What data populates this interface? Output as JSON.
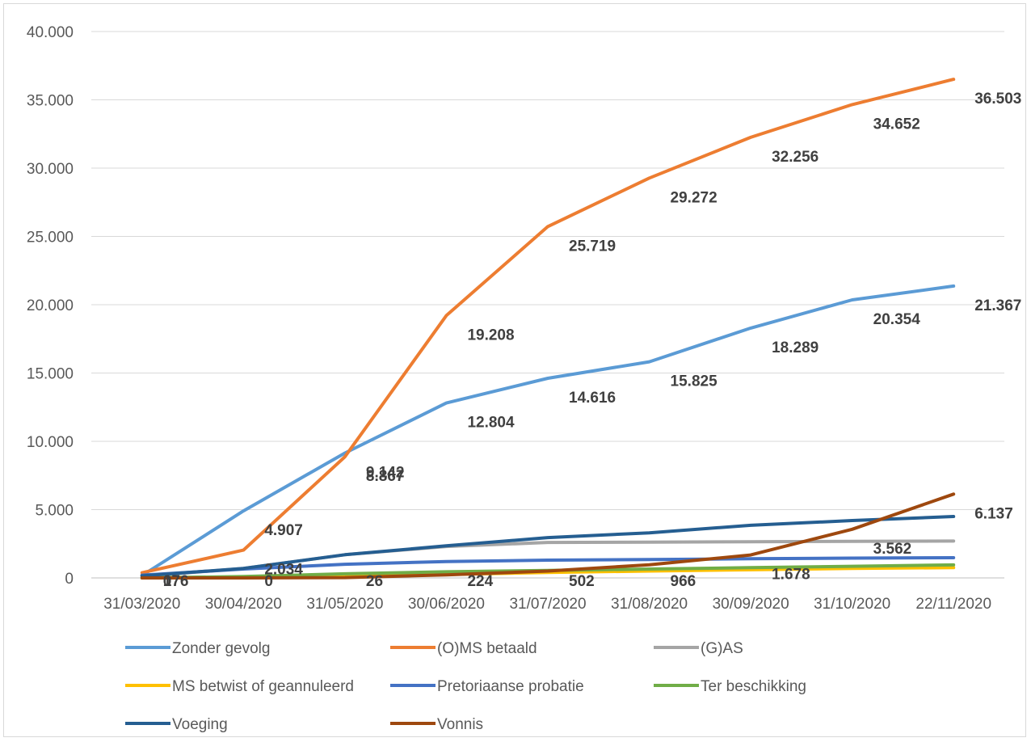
{
  "chart_data": {
    "type": "line",
    "x": [
      "31/03/2020",
      "30/04/2020",
      "31/05/2020",
      "30/06/2020",
      "31/07/2020",
      "31/08/2020",
      "30/09/2020",
      "31/10/2020",
      "22/11/2020"
    ],
    "ylim": [
      0,
      40000
    ],
    "yticks": [
      0,
      5000,
      10000,
      15000,
      20000,
      25000,
      30000,
      35000,
      40000
    ],
    "ytick_labels": [
      "0",
      "5.000",
      "10.000",
      "15.000",
      "20.000",
      "25.000",
      "30.000",
      "35.000",
      "40.000"
    ],
    "grid": true,
    "legend_position": "bottom",
    "series": [
      {
        "name": "Zonder gevolg",
        "color": "#5B9BD5",
        "values": [
          176,
          4907,
          9142,
          12804,
          14616,
          15825,
          18289,
          20354,
          21367
        ],
        "labels": [
          "176",
          "4.907",
          "9.142",
          "12.804",
          "14.616",
          "15.825",
          "18.289",
          "20.354",
          "21.367"
        ]
      },
      {
        "name": "(O)MS betaald",
        "color": "#ED7D31",
        "values": [
          376,
          2034,
          8867,
          19208,
          25719,
          29272,
          32256,
          34652,
          36503
        ],
        "labels": [
          "",
          "2.034",
          "8.867",
          "19.208",
          "25.719",
          "29.272",
          "32.256",
          "34.652",
          "36.503"
        ]
      },
      {
        "name": "(G)AS",
        "color": "#A5A5A5",
        "values": [
          100,
          700,
          1700,
          2300,
          2600,
          2620,
          2650,
          2680,
          2700
        ],
        "labels": []
      },
      {
        "name": "MS betwist of geannuleerd",
        "color": "#FFC000",
        "values": [
          0,
          50,
          150,
          250,
          400,
          500,
          600,
          700,
          750
        ],
        "labels": []
      },
      {
        "name": "Pretoriaanse probatie",
        "color": "#4472C4",
        "values": [
          200,
          650,
          1000,
          1200,
          1300,
          1350,
          1400,
          1450,
          1480
        ],
        "labels": []
      },
      {
        "name": "Ter beschikking",
        "color": "#70AD47",
        "values": [
          0,
          100,
          300,
          450,
          550,
          650,
          750,
          850,
          950
        ],
        "labels": []
      },
      {
        "name": "Voeging",
        "color": "#255E91",
        "values": [
          150,
          700,
          1700,
          2350,
          2950,
          3300,
          3850,
          4200,
          4500
        ],
        "labels": []
      },
      {
        "name": "Vonnis",
        "color": "#9E480E",
        "values": [
          0,
          0,
          26,
          224,
          502,
          966,
          1678,
          3562,
          6137
        ],
        "labels": [
          "0",
          "0",
          "26",
          "224",
          "502",
          "966",
          "1.678",
          "3.562",
          "6.137"
        ]
      }
    ]
  }
}
